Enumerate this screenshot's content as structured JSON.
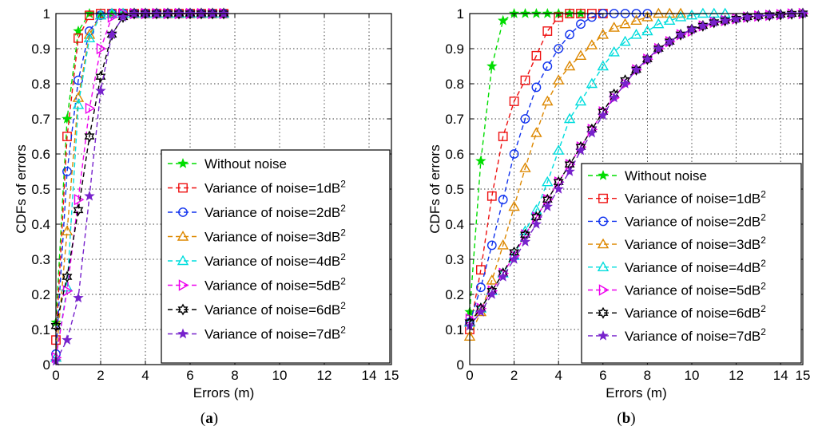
{
  "figure": {
    "captions": [
      "(a)",
      "(b)"
    ],
    "caption_letters": [
      "a",
      "b"
    ]
  },
  "styles": {
    "Without noise": {
      "color": "#00dd00",
      "marker": "star"
    },
    "Variance of noise=1dB": {
      "color": "#ee1111",
      "marker": "square"
    },
    "Variance of noise=2dB": {
      "color": "#1133ee",
      "marker": "circle"
    },
    "Variance of noise=3dB": {
      "color": "#dd8800",
      "marker": "triangle-up"
    },
    "Variance of noise=4dB": {
      "color": "#00dddd",
      "marker": "triangle-up"
    },
    "Variance of noise=5dB": {
      "color": "#ee00ee",
      "marker": "triangle-right"
    },
    "Variance of noise=6dB": {
      "color": "#000000",
      "marker": "hexagram"
    },
    "Variance of noise=7dB": {
      "color": "#7722cc",
      "marker": "star"
    }
  },
  "chart_data": [
    {
      "type": "line",
      "panel": "a",
      "xlabel": "Errors (m)",
      "ylabel": "CDFs of errors",
      "xlim": [
        0,
        15
      ],
      "ylim": [
        0,
        1
      ],
      "xticks": [
        0,
        2,
        4,
        6,
        8,
        10,
        12,
        14,
        15
      ],
      "yticks": [
        0,
        0.1,
        0.2,
        0.3,
        0.4,
        0.5,
        0.6,
        0.7,
        0.8,
        0.9,
        1
      ],
      "grid": true,
      "legend_position": "lower-right",
      "x": [
        0,
        0.5,
        1,
        1.5,
        2,
        2.5,
        3,
        3.5,
        4,
        4.5,
        5,
        5.5,
        6,
        6.5,
        7,
        7.5
      ],
      "series": [
        {
          "name": "Without noise",
          "superscript": "",
          "values": [
            0.12,
            0.7,
            0.95,
            1.0,
            1.0,
            1.0,
            1.0,
            1.0,
            1.0,
            1.0,
            1.0,
            1.0,
            1.0,
            1.0,
            1.0,
            1.0
          ]
        },
        {
          "name": "Variance of noise=1dB",
          "superscript": "2",
          "values": [
            0.07,
            0.65,
            0.93,
            0.995,
            1.0,
            1.0,
            1.0,
            1.0,
            1.0,
            1.0,
            1.0,
            1.0,
            1.0,
            1.0,
            1.0,
            1.0
          ]
        },
        {
          "name": "Variance of noise=2dB",
          "superscript": "2",
          "values": [
            0.03,
            0.55,
            0.81,
            0.95,
            0.995,
            1.0,
            1.0,
            1.0,
            1.0,
            1.0,
            1.0,
            1.0,
            1.0,
            1.0,
            1.0,
            1.0
          ]
        },
        {
          "name": "Variance of noise=3dB",
          "superscript": "2",
          "values": [
            0.02,
            0.38,
            0.76,
            0.94,
            0.995,
            1.0,
            1.0,
            1.0,
            1.0,
            1.0,
            1.0,
            1.0,
            1.0,
            1.0,
            1.0,
            1.0
          ]
        },
        {
          "name": "Variance of noise=4dB",
          "superscript": "2",
          "values": [
            0.02,
            0.22,
            0.74,
            0.93,
            0.995,
            1.0,
            1.0,
            1.0,
            1.0,
            1.0,
            1.0,
            1.0,
            1.0,
            1.0,
            1.0,
            1.0
          ]
        },
        {
          "name": "Variance of noise=5dB",
          "superscript": "2",
          "values": [
            0.02,
            0.21,
            0.47,
            0.73,
            0.9,
            0.99,
            1.0,
            1.0,
            1.0,
            1.0,
            1.0,
            1.0,
            1.0,
            1.0,
            1.0,
            1.0
          ]
        },
        {
          "name": "Variance of noise=6dB",
          "superscript": "2",
          "values": [
            0.11,
            0.25,
            0.44,
            0.65,
            0.82,
            0.94,
            0.99,
            1.0,
            1.0,
            1.0,
            1.0,
            1.0,
            1.0,
            1.0,
            1.0,
            1.0
          ]
        },
        {
          "name": "Variance of noise=7dB",
          "superscript": "2",
          "values": [
            0.01,
            0.07,
            0.19,
            0.48,
            0.78,
            0.94,
            0.99,
            1.0,
            1.0,
            1.0,
            1.0,
            1.0,
            1.0,
            1.0,
            1.0,
            1.0
          ]
        }
      ]
    },
    {
      "type": "line",
      "panel": "b",
      "xlabel": "Errors (m)",
      "ylabel": "CDFs of errors",
      "xlim": [
        0,
        15
      ],
      "ylim": [
        0,
        1
      ],
      "xticks": [
        0,
        2,
        4,
        6,
        8,
        10,
        12,
        14,
        15
      ],
      "yticks": [
        0,
        0.1,
        0.2,
        0.3,
        0.4,
        0.5,
        0.6,
        0.7,
        0.8,
        0.9,
        1
      ],
      "grid": true,
      "legend_position": "lower-right",
      "series": [
        {
          "name": "Without noise",
          "superscript": "",
          "x": [
            0,
            0.5,
            1,
            1.5,
            2,
            2.5,
            3,
            3.5,
            4,
            4.5,
            5
          ],
          "values": [
            0.15,
            0.58,
            0.85,
            0.98,
            1.0,
            1.0,
            1.0,
            1.0,
            1.0,
            1.0,
            1.0
          ]
        },
        {
          "name": "Variance of noise=1dB",
          "superscript": "2",
          "x": [
            0,
            0.5,
            1,
            1.5,
            2,
            2.5,
            3,
            3.5,
            4,
            4.5,
            5,
            5.5,
            6
          ],
          "values": [
            0.1,
            0.27,
            0.48,
            0.65,
            0.75,
            0.81,
            0.88,
            0.95,
            0.99,
            1.0,
            1.0,
            1.0,
            1.0
          ]
        },
        {
          "name": "Variance of noise=2dB",
          "superscript": "2",
          "x": [
            0,
            0.5,
            1,
            1.5,
            2,
            2.5,
            3,
            3.5,
            4,
            4.5,
            5,
            5.5,
            6,
            6.5,
            7,
            7.5,
            8
          ],
          "values": [
            0.12,
            0.22,
            0.34,
            0.47,
            0.6,
            0.7,
            0.79,
            0.85,
            0.9,
            0.94,
            0.97,
            0.99,
            1.0,
            1.0,
            1.0,
            1.0,
            1.0
          ]
        },
        {
          "name": "Variance of noise=3dB",
          "superscript": "2",
          "x": [
            0,
            0.5,
            1,
            1.5,
            2,
            2.5,
            3,
            3.5,
            4,
            4.5,
            5,
            5.5,
            6,
            6.5,
            7,
            7.5,
            8,
            8.5,
            9,
            9.5
          ],
          "values": [
            0.08,
            0.15,
            0.24,
            0.34,
            0.45,
            0.56,
            0.66,
            0.75,
            0.81,
            0.85,
            0.88,
            0.91,
            0.94,
            0.96,
            0.97,
            0.98,
            0.99,
            1.0,
            1.0,
            1.0
          ]
        },
        {
          "name": "Variance of noise=4dB",
          "superscript": "2",
          "x": [
            0,
            0.5,
            1,
            1.5,
            2,
            2.5,
            3,
            3.5,
            4,
            4.5,
            5,
            5.5,
            6,
            6.5,
            7,
            7.5,
            8,
            8.5,
            9,
            9.5,
            10,
            10.5,
            11,
            11.5
          ],
          "values": [
            0.12,
            0.16,
            0.21,
            0.26,
            0.31,
            0.38,
            0.44,
            0.52,
            0.61,
            0.7,
            0.75,
            0.8,
            0.85,
            0.89,
            0.92,
            0.94,
            0.95,
            0.97,
            0.98,
            0.99,
            0.995,
            1.0,
            1.0,
            1.0
          ]
        },
        {
          "name": "Variance of noise=5dB",
          "superscript": "2",
          "x": [
            0,
            0.5,
            1,
            1.5,
            2,
            2.5,
            3,
            3.5,
            4,
            4.5,
            5,
            5.5,
            6,
            6.5,
            7,
            7.5,
            8,
            8.5,
            9,
            9.5,
            10,
            10.5,
            11,
            11.5,
            12,
            12.5,
            13,
            13.5,
            14,
            14.5,
            15
          ],
          "values": [
            0.13,
            0.16,
            0.21,
            0.26,
            0.31,
            0.37,
            0.42,
            0.47,
            0.52,
            0.57,
            0.62,
            0.67,
            0.72,
            0.76,
            0.8,
            0.84,
            0.87,
            0.9,
            0.92,
            0.94,
            0.95,
            0.965,
            0.975,
            0.98,
            0.985,
            0.99,
            0.993,
            0.995,
            0.997,
            0.999,
            1.0
          ]
        },
        {
          "name": "Variance of noise=6dB",
          "superscript": "2",
          "x": [
            0,
            0.5,
            1,
            1.5,
            2,
            2.5,
            3,
            3.5,
            4,
            4.5,
            5,
            5.5,
            6,
            6.5,
            7,
            7.5,
            8,
            8.5,
            9,
            9.5,
            10,
            10.5,
            11,
            11.5,
            12,
            12.5,
            13,
            13.5,
            14,
            14.5,
            15
          ],
          "values": [
            0.12,
            0.16,
            0.21,
            0.26,
            0.32,
            0.37,
            0.42,
            0.47,
            0.52,
            0.57,
            0.62,
            0.67,
            0.72,
            0.77,
            0.81,
            0.84,
            0.87,
            0.9,
            0.92,
            0.94,
            0.955,
            0.965,
            0.975,
            0.98,
            0.985,
            0.99,
            0.993,
            0.995,
            0.997,
            0.999,
            1.0
          ]
        },
        {
          "name": "Variance of noise=7dB",
          "superscript": "2",
          "x": [
            0,
            0.5,
            1,
            1.5,
            2,
            2.5,
            3,
            3.5,
            4,
            4.5,
            5,
            5.5,
            6,
            6.5,
            7,
            7.5,
            8,
            8.5,
            9,
            9.5,
            10,
            10.5,
            11,
            11.5,
            12,
            12.5,
            13,
            13.5,
            14,
            14.5,
            15
          ],
          "values": [
            0.11,
            0.15,
            0.2,
            0.25,
            0.3,
            0.35,
            0.4,
            0.45,
            0.5,
            0.55,
            0.61,
            0.66,
            0.71,
            0.76,
            0.8,
            0.84,
            0.87,
            0.9,
            0.92,
            0.94,
            0.955,
            0.965,
            0.975,
            0.98,
            0.985,
            0.99,
            0.993,
            0.995,
            0.997,
            0.999,
            1.0
          ]
        }
      ]
    }
  ]
}
